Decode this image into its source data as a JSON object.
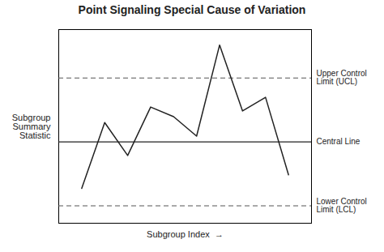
{
  "chart_data": {
    "type": "line",
    "title": "Point Signaling Special Cause of Variation",
    "xlabel": "Subgroup Index  →",
    "ylabel": "Subgroup\nSummary\nStatistic",
    "x": [
      1,
      2,
      3,
      4,
      5,
      6,
      7,
      8,
      9,
      10
    ],
    "values": [
      0.18,
      0.52,
      0.35,
      0.6,
      0.55,
      0.45,
      0.92,
      0.58,
      0.65,
      0.25
    ],
    "color": "#222222",
    "xlim": [
      0,
      11
    ],
    "ylim": [
      0.0,
      1.0
    ],
    "tick_labels": false,
    "grid": false,
    "control_lines": [
      {
        "value": 0.75,
        "label": "Upper Control\nLimit (UCL)",
        "color": "#555555",
        "line_style": "dashed"
      },
      {
        "value": 0.42,
        "label": "Central Line",
        "color": "#222222",
        "line_style": "solid"
      },
      {
        "value": 0.09,
        "label": "Lower Control\nLimit (LCL)",
        "color": "#555555",
        "line_style": "dashed"
      }
    ]
  }
}
